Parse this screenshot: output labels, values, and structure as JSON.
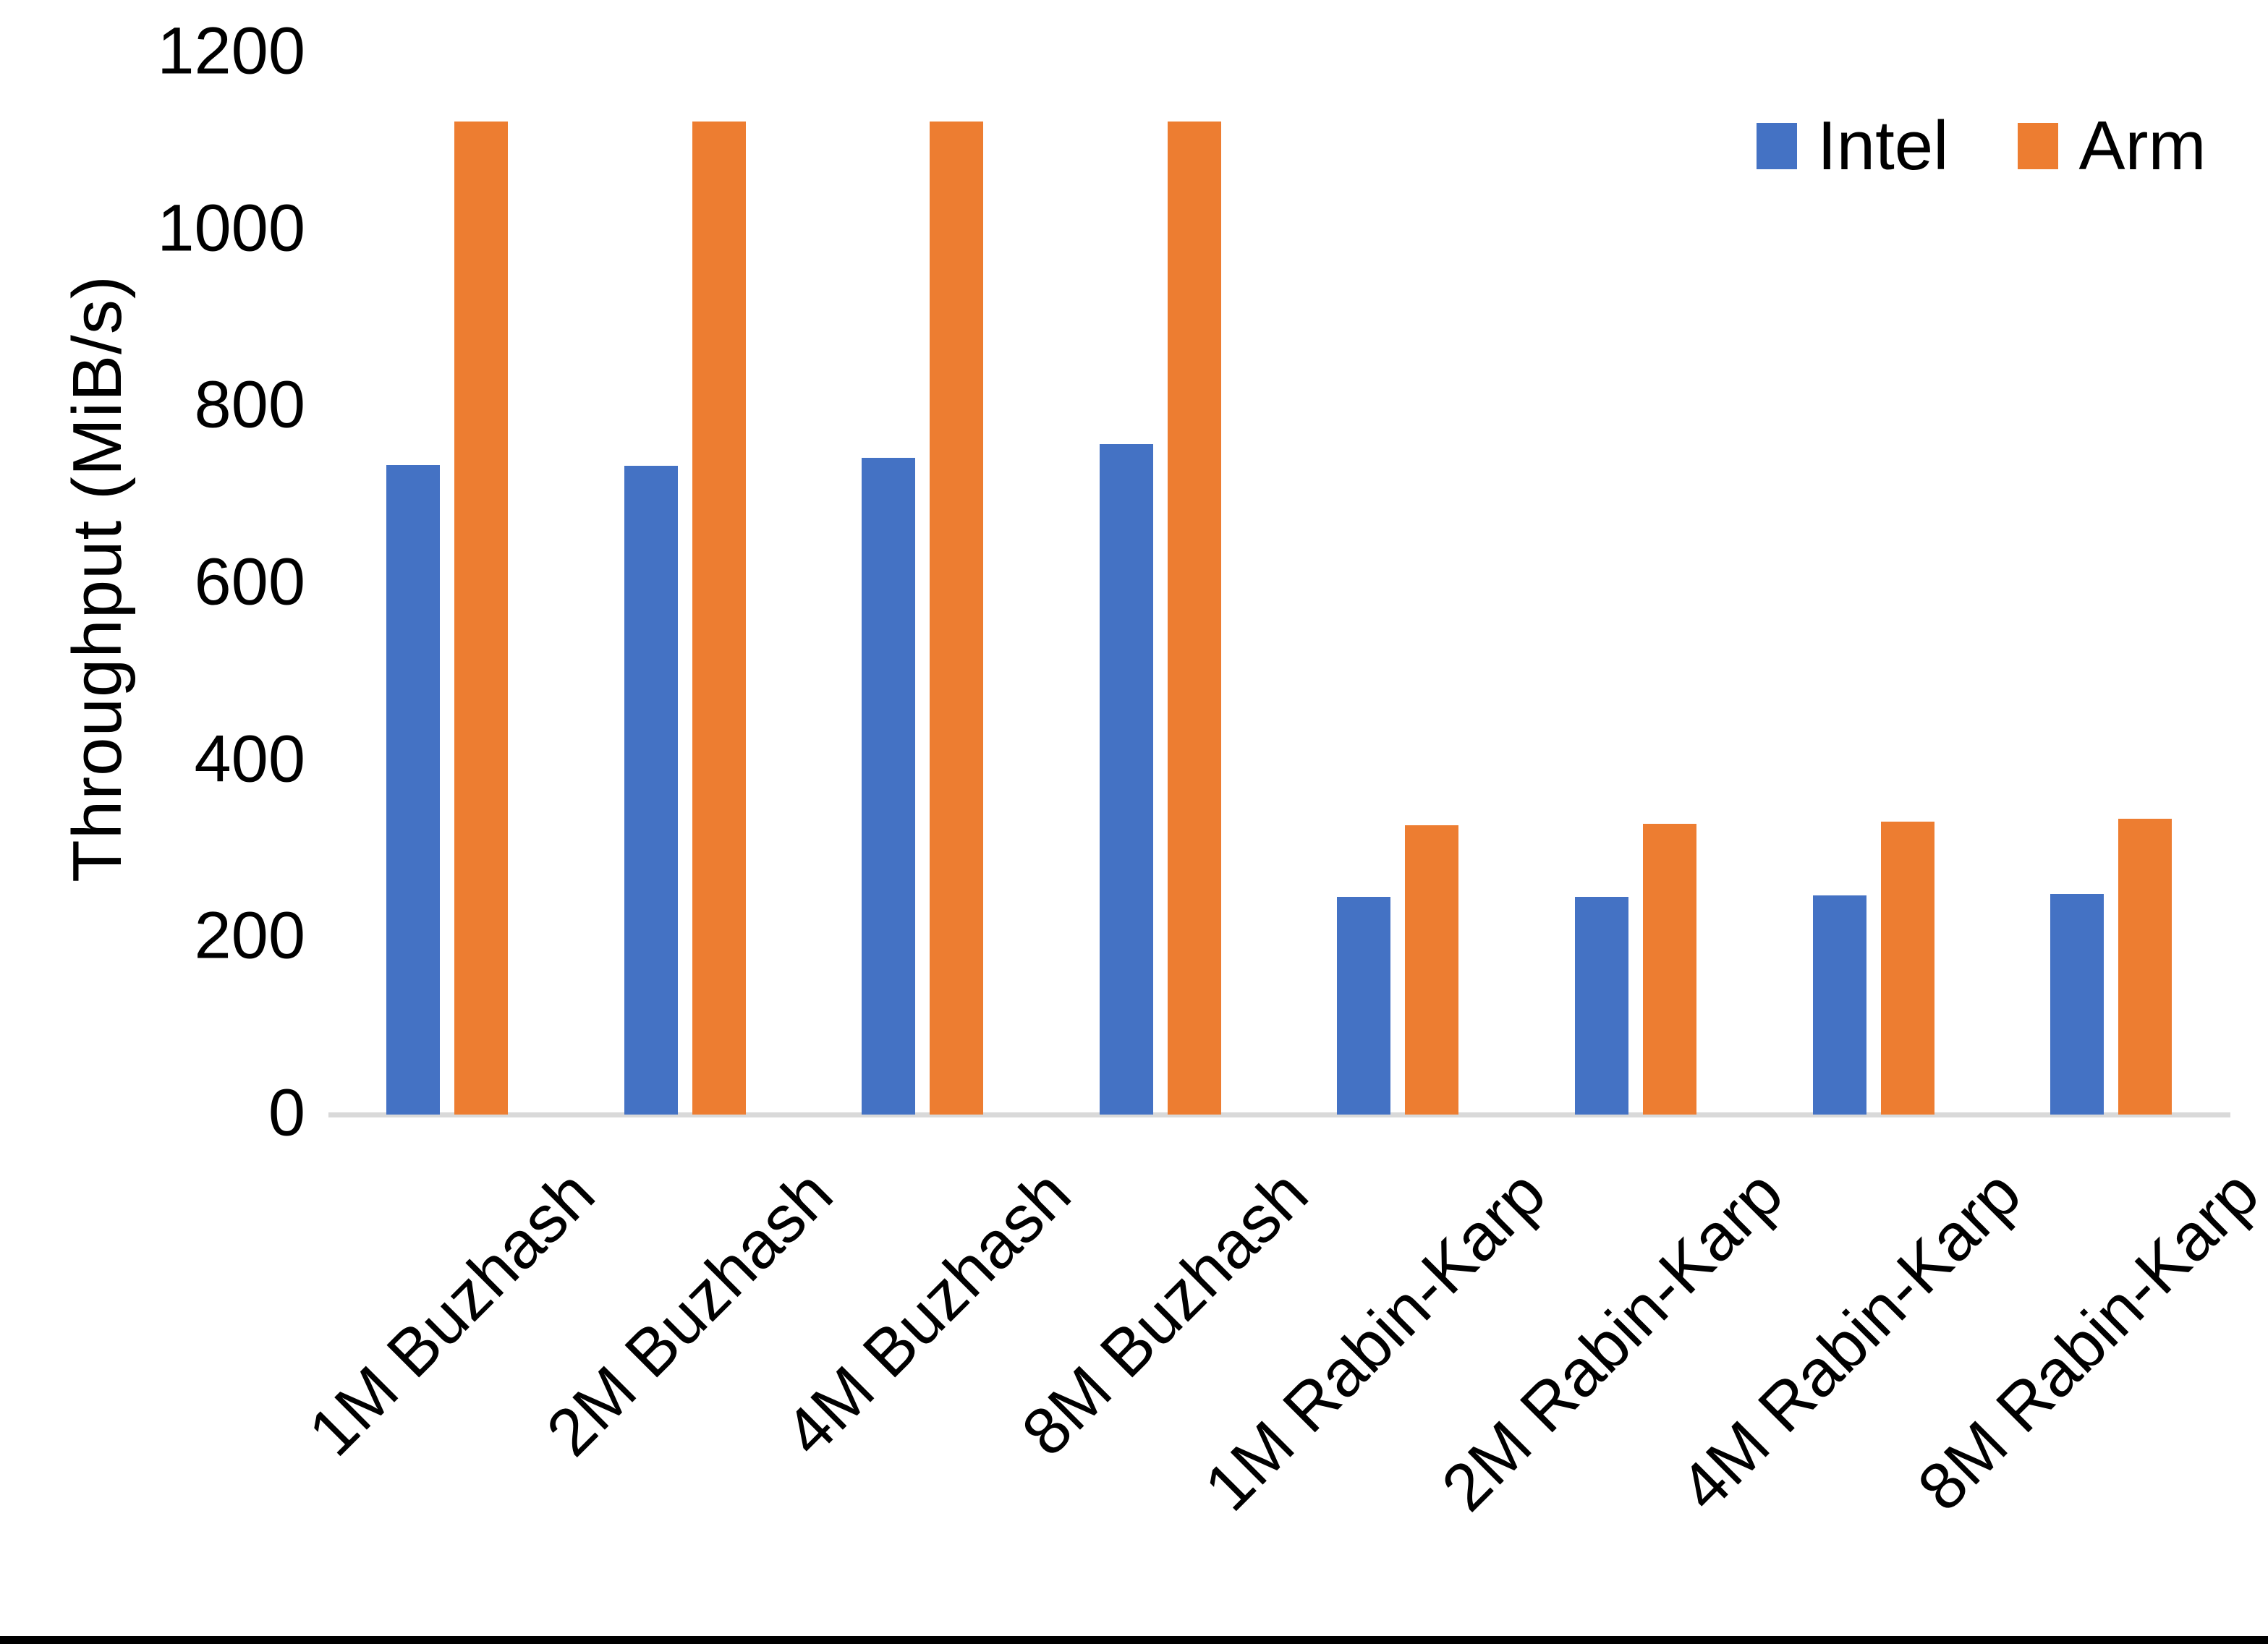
{
  "chart_data": {
    "type": "bar",
    "title": "",
    "ylabel": "Throughput (MiB/s)",
    "xlabel": "",
    "ylim": [
      0,
      1200
    ],
    "yticks": [
      0,
      200,
      400,
      600,
      800,
      1000,
      1200
    ],
    "grid": false,
    "legend_position": "top-right",
    "background": "#FFFFFF",
    "text_color": "#000000",
    "axis_line_color": "#D9D9D9",
    "categories": [
      "1M Buzhash",
      "2M Buzhash",
      "4M Buzhash",
      "8M Buzhash",
      "1M Rabin-Karp",
      "2M Rabin-Karp",
      "4M Rabin-Karp",
      "8M Rabin-Karp"
    ],
    "series": [
      {
        "name": "Intel",
        "color": "#4472C4",
        "values": [
          734,
          733,
          742,
          758,
          246,
          246,
          248,
          249
        ]
      },
      {
        "name": "Arm",
        "color": "#ED7D31",
        "values": [
          1122,
          1122,
          1122,
          1122,
          327,
          329,
          331,
          334
        ]
      }
    ]
  },
  "legend": {
    "items": [
      {
        "label": "Intel",
        "color": "#4472C4"
      },
      {
        "label": "Arm",
        "color": "#ED7D31"
      }
    ]
  }
}
